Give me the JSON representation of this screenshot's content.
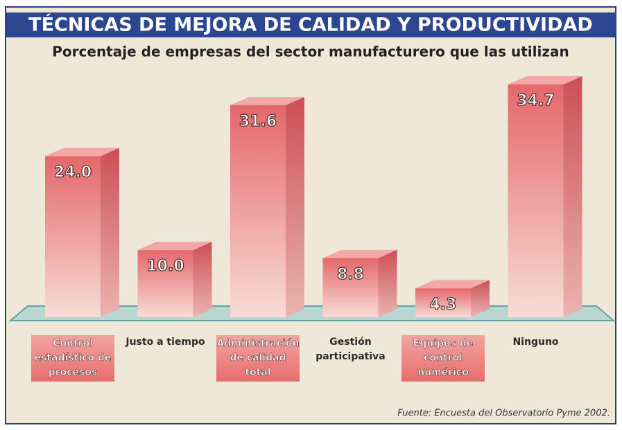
{
  "chart_data": {
    "type": "bar3d",
    "title": "TÉCNICAS DE MEJORA DE CALIDAD Y PRODUCTIVIDAD",
    "subtitle": "Porcentaje de empresas del sector manufacturero que las utilizan",
    "categories": [
      "Control estadístico de procesos",
      "Justo a tiempo",
      "Administración de calidad total",
      "Gestión participativa",
      "Equipos de control numérico",
      "Ninguno"
    ],
    "values": [
      24.0,
      10.0,
      31.6,
      8.8,
      4.3,
      34.7
    ],
    "value_labels": [
      "24.0",
      "10.0",
      "31.6",
      "8.8",
      "4.3",
      "34.7"
    ],
    "color": "#e4676a",
    "source": "Fuente: Encuesta del Observatorio Pyme 2002."
  }
}
